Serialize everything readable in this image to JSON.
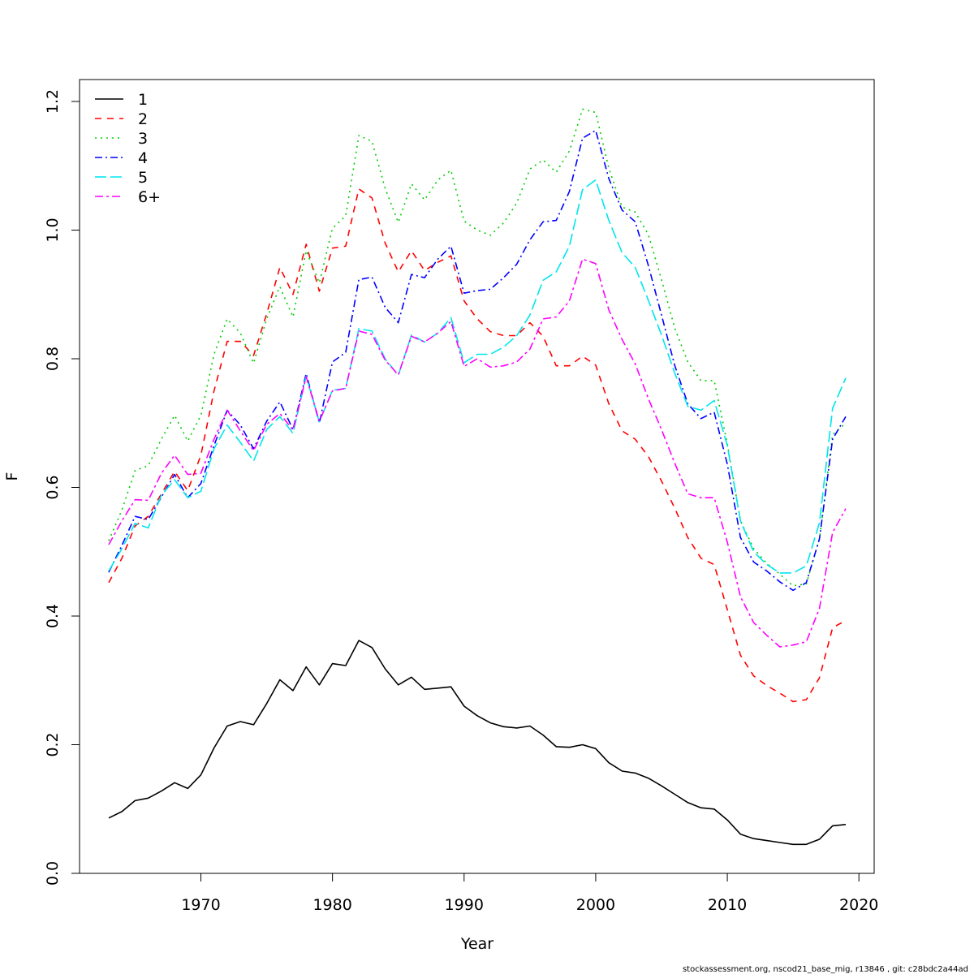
{
  "chart_data": {
    "type": "line",
    "title": "",
    "xlabel": "Year",
    "ylabel": "F",
    "xlim": [
      1960,
      2021
    ],
    "ylim": [
      0,
      1.23
    ],
    "x_ticks": [
      "1970",
      "1980",
      "1990",
      "2000",
      "2010",
      "2020"
    ],
    "x_tick_values": [
      1970,
      1980,
      1990,
      2000,
      2010,
      2020
    ],
    "y_ticks": [
      "0.0",
      "0.2",
      "0.4",
      "0.6",
      "0.8",
      "1.0",
      "1.2"
    ],
    "y_tick_values": [
      0.0,
      0.2,
      0.4,
      0.6,
      0.8,
      1.0,
      1.2
    ],
    "grid": false,
    "legend_position": "top-left",
    "x": [
      1963,
      1964,
      1965,
      1966,
      1967,
      1968,
      1969,
      1970,
      1971,
      1972,
      1973,
      1974,
      1975,
      1976,
      1977,
      1978,
      1979,
      1980,
      1981,
      1982,
      1983,
      1984,
      1985,
      1986,
      1987,
      1988,
      1989,
      1990,
      1991,
      1992,
      1993,
      1994,
      1995,
      1996,
      1997,
      1998,
      1999,
      2000,
      2001,
      2002,
      2003,
      2004,
      2005,
      2006,
      2007,
      2008,
      2009,
      2010,
      2011,
      2012,
      2013,
      2014,
      2015,
      2016,
      2017,
      2018,
      2019
    ],
    "series": [
      {
        "name": "1",
        "color": "#000000",
        "dash": "solid",
        "values": [
          0.086,
          0.096,
          0.113,
          0.117,
          0.128,
          0.141,
          0.132,
          0.153,
          0.195,
          0.229,
          0.236,
          0.231,
          0.264,
          0.301,
          0.284,
          0.321,
          0.293,
          0.326,
          0.323,
          0.362,
          0.351,
          0.318,
          0.293,
          0.305,
          0.286,
          0.288,
          0.29,
          0.26,
          0.245,
          0.234,
          0.228,
          0.226,
          0.229,
          0.215,
          0.197,
          0.196,
          0.2,
          0.194,
          0.172,
          0.159,
          0.156,
          0.148,
          0.136,
          0.123,
          0.11,
          0.102,
          0.1,
          0.083,
          0.061,
          0.054,
          0.051,
          0.048,
          0.045,
          0.045,
          0.053,
          0.074,
          0.076
        ]
      },
      {
        "name": "2",
        "color": "#ff0000",
        "dash": "8,7",
        "values": [
          0.452,
          0.49,
          0.54,
          0.555,
          0.59,
          0.625,
          0.595,
          0.65,
          0.75,
          0.827,
          0.827,
          0.805,
          0.87,
          0.942,
          0.9,
          0.978,
          0.905,
          0.972,
          0.975,
          1.064,
          1.05,
          0.98,
          0.935,
          0.968,
          0.937,
          0.95,
          0.96,
          0.89,
          0.862,
          0.842,
          0.836,
          0.836,
          0.856,
          0.835,
          0.789,
          0.789,
          0.804,
          0.79,
          0.73,
          0.688,
          0.675,
          0.648,
          0.61,
          0.568,
          0.522,
          0.49,
          0.48,
          0.41,
          0.339,
          0.307,
          0.292,
          0.28,
          0.267,
          0.27,
          0.304,
          0.382,
          0.393
        ]
      },
      {
        "name": "3",
        "color": "#00cd00",
        "dash": "2,5",
        "values": [
          0.517,
          0.565,
          0.626,
          0.634,
          0.675,
          0.712,
          0.672,
          0.712,
          0.807,
          0.862,
          0.84,
          0.793,
          0.862,
          0.912,
          0.865,
          0.968,
          0.918,
          1.003,
          1.022,
          1.147,
          1.138,
          1.065,
          1.012,
          1.072,
          1.047,
          1.078,
          1.093,
          1.014,
          1.0,
          0.992,
          1.011,
          1.042,
          1.095,
          1.109,
          1.09,
          1.123,
          1.188,
          1.183,
          1.096,
          1.036,
          1.028,
          0.993,
          0.923,
          0.848,
          0.795,
          0.766,
          0.766,
          0.668,
          0.548,
          0.505,
          0.482,
          0.465,
          0.447,
          0.45,
          0.52,
          0.682,
          0.7
        ]
      },
      {
        "name": "4",
        "color": "#0000ff",
        "dash": "9,4,2,4",
        "values": [
          0.468,
          0.51,
          0.555,
          0.55,
          0.585,
          0.62,
          0.584,
          0.606,
          0.665,
          0.72,
          0.697,
          0.66,
          0.703,
          0.733,
          0.69,
          0.777,
          0.7,
          0.795,
          0.81,
          0.923,
          0.927,
          0.88,
          0.856,
          0.931,
          0.926,
          0.955,
          0.975,
          0.902,
          0.906,
          0.908,
          0.926,
          0.947,
          0.985,
          1.013,
          1.015,
          1.06,
          1.143,
          1.155,
          1.08,
          1.031,
          1.013,
          0.945,
          0.868,
          0.79,
          0.73,
          0.707,
          0.717,
          0.636,
          0.522,
          0.484,
          0.47,
          0.453,
          0.44,
          0.452,
          0.52,
          0.675,
          0.71
        ]
      },
      {
        "name": "5",
        "color": "#00e5ee",
        "dash": "14,5",
        "values": [
          0.47,
          0.505,
          0.544,
          0.537,
          0.588,
          0.612,
          0.584,
          0.594,
          0.66,
          0.697,
          0.67,
          0.641,
          0.69,
          0.71,
          0.684,
          0.773,
          0.702,
          0.751,
          0.754,
          0.847,
          0.843,
          0.8,
          0.774,
          0.837,
          0.826,
          0.84,
          0.864,
          0.794,
          0.807,
          0.807,
          0.818,
          0.836,
          0.868,
          0.922,
          0.935,
          0.975,
          1.063,
          1.078,
          1.015,
          0.965,
          0.942,
          0.891,
          0.837,
          0.778,
          0.726,
          0.72,
          0.735,
          0.665,
          0.548,
          0.5,
          0.48,
          0.467,
          0.467,
          0.478,
          0.545,
          0.723,
          0.77
        ]
      },
      {
        "name": "6+",
        "color": "#ff00ff",
        "dash": "10,4,3,4",
        "values": [
          0.511,
          0.548,
          0.581,
          0.58,
          0.622,
          0.65,
          0.62,
          0.622,
          0.675,
          0.72,
          0.688,
          0.657,
          0.698,
          0.715,
          0.689,
          0.772,
          0.703,
          0.75,
          0.754,
          0.843,
          0.838,
          0.798,
          0.775,
          0.835,
          0.826,
          0.84,
          0.858,
          0.788,
          0.8,
          0.787,
          0.789,
          0.795,
          0.815,
          0.862,
          0.865,
          0.89,
          0.955,
          0.948,
          0.876,
          0.83,
          0.792,
          0.738,
          0.69,
          0.638,
          0.59,
          0.584,
          0.584,
          0.515,
          0.43,
          0.39,
          0.37,
          0.352,
          0.355,
          0.36,
          0.412,
          0.53,
          0.567
        ]
      }
    ]
  },
  "footer": {
    "source_text": "stockassessment.org, nscod21_base_mig, r13846 , git: c28bdc2a44ad"
  }
}
